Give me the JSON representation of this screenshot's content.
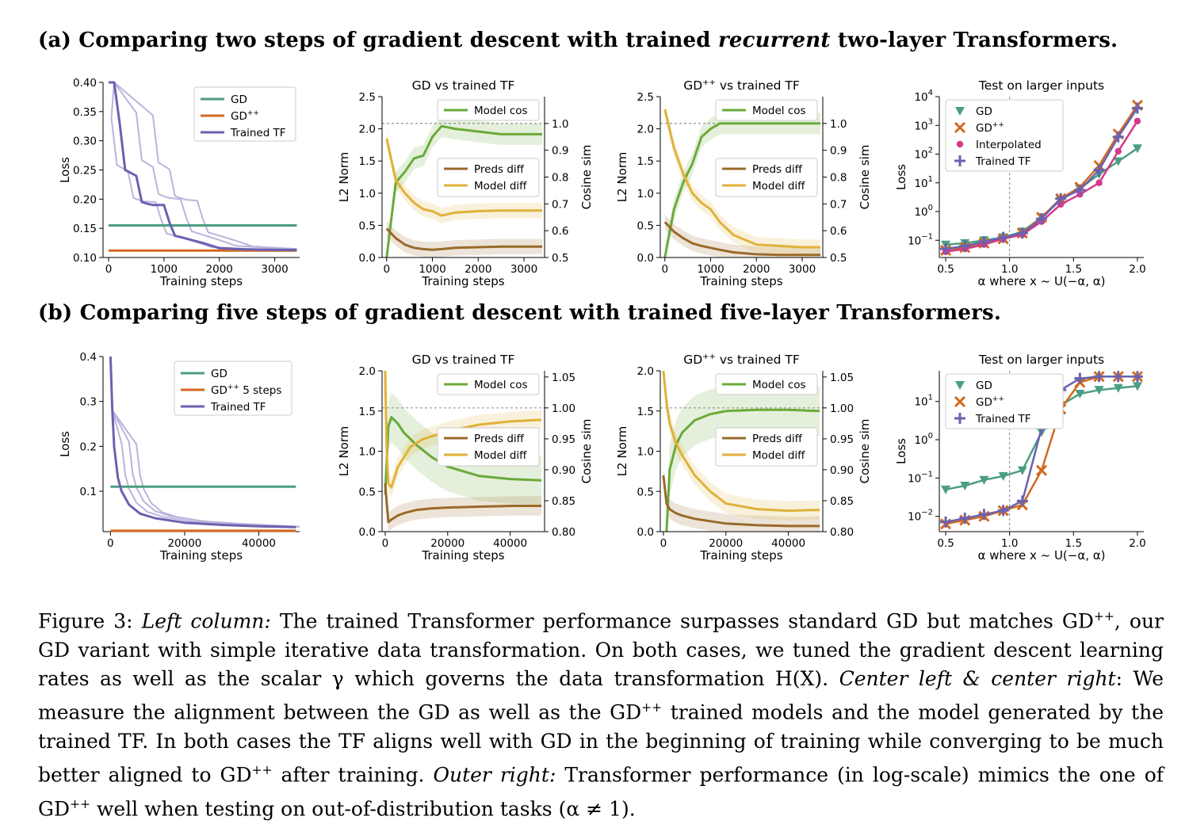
{
  "row_a_title": {
    "prefix": "(a) Comparing two steps of gradient descent with trained ",
    "emph": "recurrent",
    "suffix": " two-layer Transformers."
  },
  "row_b_title": "(b) Comparing five steps of gradient descent with trained five-layer Transformers.",
  "caption": {
    "label": "Figure 3: ",
    "left_col": "Left column:",
    "t1": " The trained Transformer performance surpasses standard GD but matches GD",
    "sup": "++",
    "t2": ", our GD variant with simple iterative data transformation. On both cases, we tuned the gradient descent learning rates as well as the scalar γ which governs the data transformation H(X). ",
    "center": "Center left & center right",
    "t3": ": We measure the alignment between the GD as well as the GD",
    "t4": " trained models and the model generated by the trained TF. In both cases the TF aligns well with GD in the beginning of training while converging to be much better aligned to GD",
    "t5": " after training. ",
    "outer": "Outer right:",
    "t6": " Transformer performance (in log-scale) mimics the one of GD",
    "t7": " well when testing on out-of-distribution tasks (α ≠ 1)."
  },
  "colors": {
    "gd": "#4c9e82",
    "gdpp": "#d2691e",
    "tf": "#6a62b0",
    "green": "#6aaa3a",
    "brown": "#9a6a2a",
    "gold": "#e0b23a",
    "pink": "#d43a8a",
    "light": "#b9b5dc"
  },
  "chart_data": [
    {
      "id": "a1",
      "type": "line",
      "title": "",
      "xlabel": "Training steps",
      "ylabel": "Loss",
      "xlim": [
        -100,
        3450
      ],
      "ylim": [
        0.1,
        0.4
      ],
      "xticks": [
        "0",
        "1000",
        "2000",
        "3000"
      ],
      "yticks": [
        "0.10",
        "0.15",
        "0.20",
        "0.25",
        "0.30",
        "0.35",
        "0.40"
      ],
      "legend": [
        "GD",
        "GD++",
        "Trained TF"
      ],
      "series": [
        {
          "name": "GD",
          "x": [
            0,
            3400
          ],
          "y": [
            0.155,
            0.155
          ]
        },
        {
          "name": "GD++",
          "x": [
            0,
            3400
          ],
          "y": [
            0.112,
            0.112
          ]
        },
        {
          "name": "Trained TF",
          "x": [
            0,
            100,
            200,
            300,
            400,
            500,
            600,
            700,
            800,
            900,
            1000,
            1100,
            1200,
            1300,
            1500,
            1700,
            2000,
            2500,
            3000,
            3400
          ],
          "y": [
            0.41,
            0.4,
            0.33,
            0.25,
            0.245,
            0.24,
            0.195,
            0.192,
            0.19,
            0.19,
            0.19,
            0.16,
            0.137,
            0.135,
            0.13,
            0.125,
            0.116,
            0.114,
            0.113,
            0.113
          ]
        }
      ]
    },
    {
      "id": "a2",
      "type": "line",
      "title": "GD vs trained TF",
      "xlabel": "Training steps",
      "ylabel": "L2 Norm",
      "y2label": "Cosine sim",
      "xlim": [
        -100,
        3450
      ],
      "ylim": [
        0,
        2.5
      ],
      "y2lim": [
        0.5,
        1.1
      ],
      "xticks": [
        "0",
        "1000",
        "2000",
        "3000"
      ],
      "yticks": [
        "0.0",
        "0.5",
        "1.0",
        "1.5",
        "2.0",
        "2.5"
      ],
      "y2ticks": [
        "0.5",
        "0.6",
        "0.7",
        "0.8",
        "0.9",
        "1.0"
      ],
      "legend1": [
        "Model cos"
      ],
      "legend2": [
        "Preds diff",
        "Model diff"
      ],
      "series": [
        {
          "name": "Model cos",
          "axis": "right",
          "x": [
            0,
            200,
            400,
            600,
            800,
            1000,
            1200,
            1500,
            2000,
            2500,
            3000,
            3400
          ],
          "y": [
            0.5,
            0.78,
            0.82,
            0.87,
            0.88,
            0.95,
            0.99,
            0.98,
            0.97,
            0.96,
            0.96,
            0.96
          ]
        },
        {
          "name": "Preds diff",
          "axis": "left",
          "x": [
            0,
            200,
            400,
            600,
            800,
            1000,
            1200,
            1500,
            2000,
            2500,
            3000,
            3400
          ],
          "y": [
            0.45,
            0.3,
            0.2,
            0.15,
            0.13,
            0.12,
            0.13,
            0.15,
            0.16,
            0.17,
            0.17,
            0.17
          ]
        },
        {
          "name": "Model diff",
          "axis": "left",
          "x": [
            0,
            200,
            400,
            600,
            800,
            1000,
            1200,
            1500,
            2000,
            2500,
            3000,
            3400
          ],
          "y": [
            1.85,
            1.2,
            1.0,
            0.85,
            0.75,
            0.72,
            0.65,
            0.7,
            0.72,
            0.73,
            0.73,
            0.73
          ]
        }
      ]
    },
    {
      "id": "a3",
      "type": "line",
      "title": "GD++ vs trained TF",
      "xlabel": "Training steps",
      "ylabel": "L2 Norm",
      "y2label": "Cosine sim",
      "xlim": [
        -100,
        3450
      ],
      "ylim": [
        0,
        2.5
      ],
      "y2lim": [
        0.5,
        1.1
      ],
      "xticks": [
        "0",
        "1000",
        "2000",
        "3000"
      ],
      "yticks": [
        "0.0",
        "0.5",
        "1.0",
        "1.5",
        "2.0",
        "2.5"
      ],
      "y2ticks": [
        "0.5",
        "0.6",
        "0.7",
        "0.8",
        "0.9",
        "1.0"
      ],
      "legend1": [
        "Model cos"
      ],
      "legend2": [
        "Preds diff",
        "Model diff"
      ],
      "series": [
        {
          "name": "Model cos",
          "axis": "right",
          "x": [
            0,
            200,
            400,
            600,
            800,
            1000,
            1200,
            1500,
            2000,
            2500,
            3000,
            3400
          ],
          "y": [
            0.5,
            0.68,
            0.78,
            0.85,
            0.95,
            0.98,
            1.0,
            1.0,
            1.0,
            1.0,
            1.0,
            1.0
          ]
        },
        {
          "name": "Preds diff",
          "axis": "left",
          "x": [
            0,
            200,
            400,
            600,
            800,
            1000,
            1200,
            1500,
            2000,
            2500,
            3000,
            3400
          ],
          "y": [
            0.55,
            0.4,
            0.3,
            0.22,
            0.18,
            0.15,
            0.12,
            0.08,
            0.05,
            0.04,
            0.04,
            0.04
          ]
        },
        {
          "name": "Model diff",
          "axis": "left",
          "x": [
            0,
            200,
            400,
            600,
            800,
            1000,
            1200,
            1500,
            2000,
            2500,
            3000,
            3400
          ],
          "y": [
            2.3,
            1.7,
            1.3,
            1.0,
            0.85,
            0.75,
            0.55,
            0.35,
            0.2,
            0.18,
            0.16,
            0.16
          ]
        }
      ]
    },
    {
      "id": "a4",
      "type": "line",
      "log": true,
      "title": "Test on larger inputs",
      "xlabel": "α   where x ~ U(−α, α)",
      "ylabel": "Loss",
      "xlim": [
        0.45,
        2.05
      ],
      "ylim": [
        -1.6,
        4
      ],
      "xticks": [
        "0.5",
        "1.0",
        "1.5",
        "2.0"
      ],
      "ylogticks": [
        -1,
        0,
        1,
        2,
        3,
        4
      ],
      "legend": [
        "GD",
        "GD++",
        "Interpolated",
        "Trained TF"
      ],
      "x": [
        0.5,
        0.65,
        0.8,
        0.95,
        1.1,
        1.25,
        1.4,
        1.55,
        1.7,
        1.85,
        2.0
      ],
      "series": [
        {
          "name": "GD",
          "logy": [
            -1.15,
            -1.1,
            -1.0,
            -0.9,
            -0.7,
            -0.2,
            0.4,
            0.8,
            1.3,
            1.75,
            2.2
          ]
        },
        {
          "name": "GD++",
          "logy": [
            -1.35,
            -1.25,
            -1.1,
            -0.95,
            -0.75,
            -0.2,
            0.45,
            0.85,
            1.6,
            2.7,
            3.7
          ]
        },
        {
          "name": "Interpolated",
          "logy": [
            -1.4,
            -1.3,
            -1.15,
            -0.95,
            -0.8,
            -0.35,
            0.25,
            0.6,
            1.0,
            2.1,
            3.15
          ]
        },
        {
          "name": "Trained TF",
          "logy": [
            -1.3,
            -1.2,
            -1.05,
            -0.9,
            -0.75,
            -0.25,
            0.45,
            0.75,
            1.45,
            2.6,
            3.6
          ]
        }
      ]
    },
    {
      "id": "b1",
      "type": "line",
      "title": "",
      "xlabel": "Training steps",
      "ylabel": "Loss",
      "xlim": [
        -2000,
        51000
      ],
      "ylim": [
        0.01,
        0.4
      ],
      "xticks": [
        "0",
        "20000",
        "40000"
      ],
      "yticks": [
        "0.1",
        "0.2",
        "0.3",
        "0.4"
      ],
      "legend": [
        "GD",
        "GD++ 5 steps",
        "Trained TF"
      ],
      "series": [
        {
          "name": "GD",
          "x": [
            0,
            50000
          ],
          "y": [
            0.11,
            0.11
          ]
        },
        {
          "name": "GD++ 5 steps",
          "x": [
            0,
            50000
          ],
          "y": [
            0.012,
            0.012
          ]
        },
        {
          "name": "Trained TF",
          "x": [
            0,
            500,
            1000,
            2000,
            3000,
            5000,
            8000,
            12000,
            20000,
            30000,
            40000,
            50000
          ],
          "y": [
            0.4,
            0.28,
            0.2,
            0.13,
            0.1,
            0.07,
            0.05,
            0.04,
            0.03,
            0.025,
            0.022,
            0.02
          ]
        }
      ]
    },
    {
      "id": "b2",
      "type": "line",
      "title": "GD vs trained TF",
      "xlabel": "Training steps",
      "ylabel": "L2 Norm",
      "y2label": "Cosine sim",
      "xlim": [
        -1000,
        51000
      ],
      "ylim": [
        0,
        2
      ],
      "y2lim": [
        0.8,
        1.06
      ],
      "xticks": [
        "0",
        "20000",
        "40000"
      ],
      "yticks": [
        "0.0",
        "0.5",
        "1.0",
        "1.5",
        "2.0"
      ],
      "y2ticks": [
        "0.80",
        "0.85",
        "0.90",
        "0.95",
        "1.00",
        "1.05"
      ],
      "legend1": [
        "Model cos"
      ],
      "legend2": [
        "Preds diff",
        "Model diff"
      ],
      "series": [
        {
          "name": "Model cos",
          "axis": "right",
          "x": [
            0,
            1000,
            2000,
            4000,
            6000,
            10000,
            15000,
            20000,
            30000,
            40000,
            50000
          ],
          "y": [
            0.86,
            0.97,
            0.985,
            0.975,
            0.96,
            0.94,
            0.92,
            0.905,
            0.89,
            0.885,
            0.883
          ]
        },
        {
          "name": "Preds diff",
          "axis": "left",
          "x": [
            0,
            1000,
            2000,
            4000,
            6000,
            10000,
            15000,
            20000,
            30000,
            40000,
            50000
          ],
          "y": [
            0.6,
            0.12,
            0.15,
            0.2,
            0.23,
            0.27,
            0.29,
            0.3,
            0.31,
            0.32,
            0.32
          ]
        },
        {
          "name": "Model diff",
          "axis": "left",
          "x": [
            0,
            500,
            1000,
            2000,
            4000,
            8000,
            12000,
            20000,
            30000,
            40000,
            50000
          ],
          "y": [
            2.0,
            1.0,
            0.6,
            0.55,
            0.8,
            1.05,
            1.15,
            1.25,
            1.33,
            1.37,
            1.39
          ]
        }
      ]
    },
    {
      "id": "b3",
      "type": "line",
      "title": "GD++ vs trained TF",
      "xlabel": "Training steps",
      "ylabel": "L2 Norm",
      "y2label": "Cosine sim",
      "xlim": [
        -1000,
        51000
      ],
      "ylim": [
        0,
        2
      ],
      "y2lim": [
        0.8,
        1.06
      ],
      "xticks": [
        "0",
        "20000",
        "40000"
      ],
      "yticks": [
        "0.0",
        "0.5",
        "1.0",
        "1.5",
        "2.0"
      ],
      "y2ticks": [
        "0.80",
        "0.85",
        "0.90",
        "0.95",
        "1.00",
        "1.05"
      ],
      "legend1": [
        "Model cos"
      ],
      "legend2": [
        "Preds diff",
        "Model diff"
      ],
      "series": [
        {
          "name": "Model cos",
          "axis": "right",
          "x": [
            1000,
            2000,
            4000,
            6000,
            10000,
            15000,
            20000,
            30000,
            40000,
            50000
          ],
          "y": [
            0.8,
            0.9,
            0.94,
            0.96,
            0.98,
            0.99,
            0.995,
            0.997,
            0.997,
            0.995
          ]
        },
        {
          "name": "Preds diff",
          "axis": "left",
          "x": [
            0,
            1000,
            2000,
            4000,
            6000,
            10000,
            15000,
            20000,
            30000,
            40000,
            50000
          ],
          "y": [
            0.7,
            0.35,
            0.28,
            0.23,
            0.2,
            0.16,
            0.13,
            0.1,
            0.08,
            0.07,
            0.07
          ]
        },
        {
          "name": "Model diff",
          "axis": "left",
          "x": [
            0,
            1000,
            2000,
            4000,
            6000,
            10000,
            15000,
            20000,
            30000,
            40000,
            50000
          ],
          "y": [
            2.0,
            1.6,
            1.35,
            1.1,
            0.95,
            0.7,
            0.5,
            0.35,
            0.28,
            0.26,
            0.27
          ]
        }
      ]
    },
    {
      "id": "b4",
      "type": "line",
      "log": true,
      "title": "Test on larger inputs",
      "xlabel": "α   where x ~ U(−α, α)",
      "ylabel": "Loss",
      "xlim": [
        0.45,
        2.05
      ],
      "ylim": [
        -2.4,
        1.8
      ],
      "xticks": [
        "0.5",
        "1.0",
        "1.5",
        "2.0"
      ],
      "ylogticks": [
        -2,
        -1,
        0,
        1
      ],
      "legend": [
        "GD",
        "GD++",
        "Trained TF"
      ],
      "x": [
        0.5,
        0.65,
        0.8,
        0.95,
        1.1,
        1.25,
        1.4,
        1.55,
        1.7,
        1.85,
        2.0
      ],
      "series": [
        {
          "name": "GD",
          "logy": [
            -1.3,
            -1.2,
            -1.05,
            -0.95,
            -0.8,
            0.2,
            0.9,
            1.2,
            1.3,
            1.35,
            1.4
          ]
        },
        {
          "name": "GD++",
          "logy": [
            -2.2,
            -2.1,
            -2.0,
            -1.85,
            -1.7,
            -0.8,
            0.8,
            1.5,
            1.65,
            1.65,
            1.65
          ]
        },
        {
          "name": "Trained TF",
          "logy": [
            -2.15,
            -2.05,
            -1.95,
            -1.85,
            -1.6,
            0.3,
            1.3,
            1.6,
            1.65,
            1.65,
            1.65
          ]
        }
      ]
    }
  ]
}
